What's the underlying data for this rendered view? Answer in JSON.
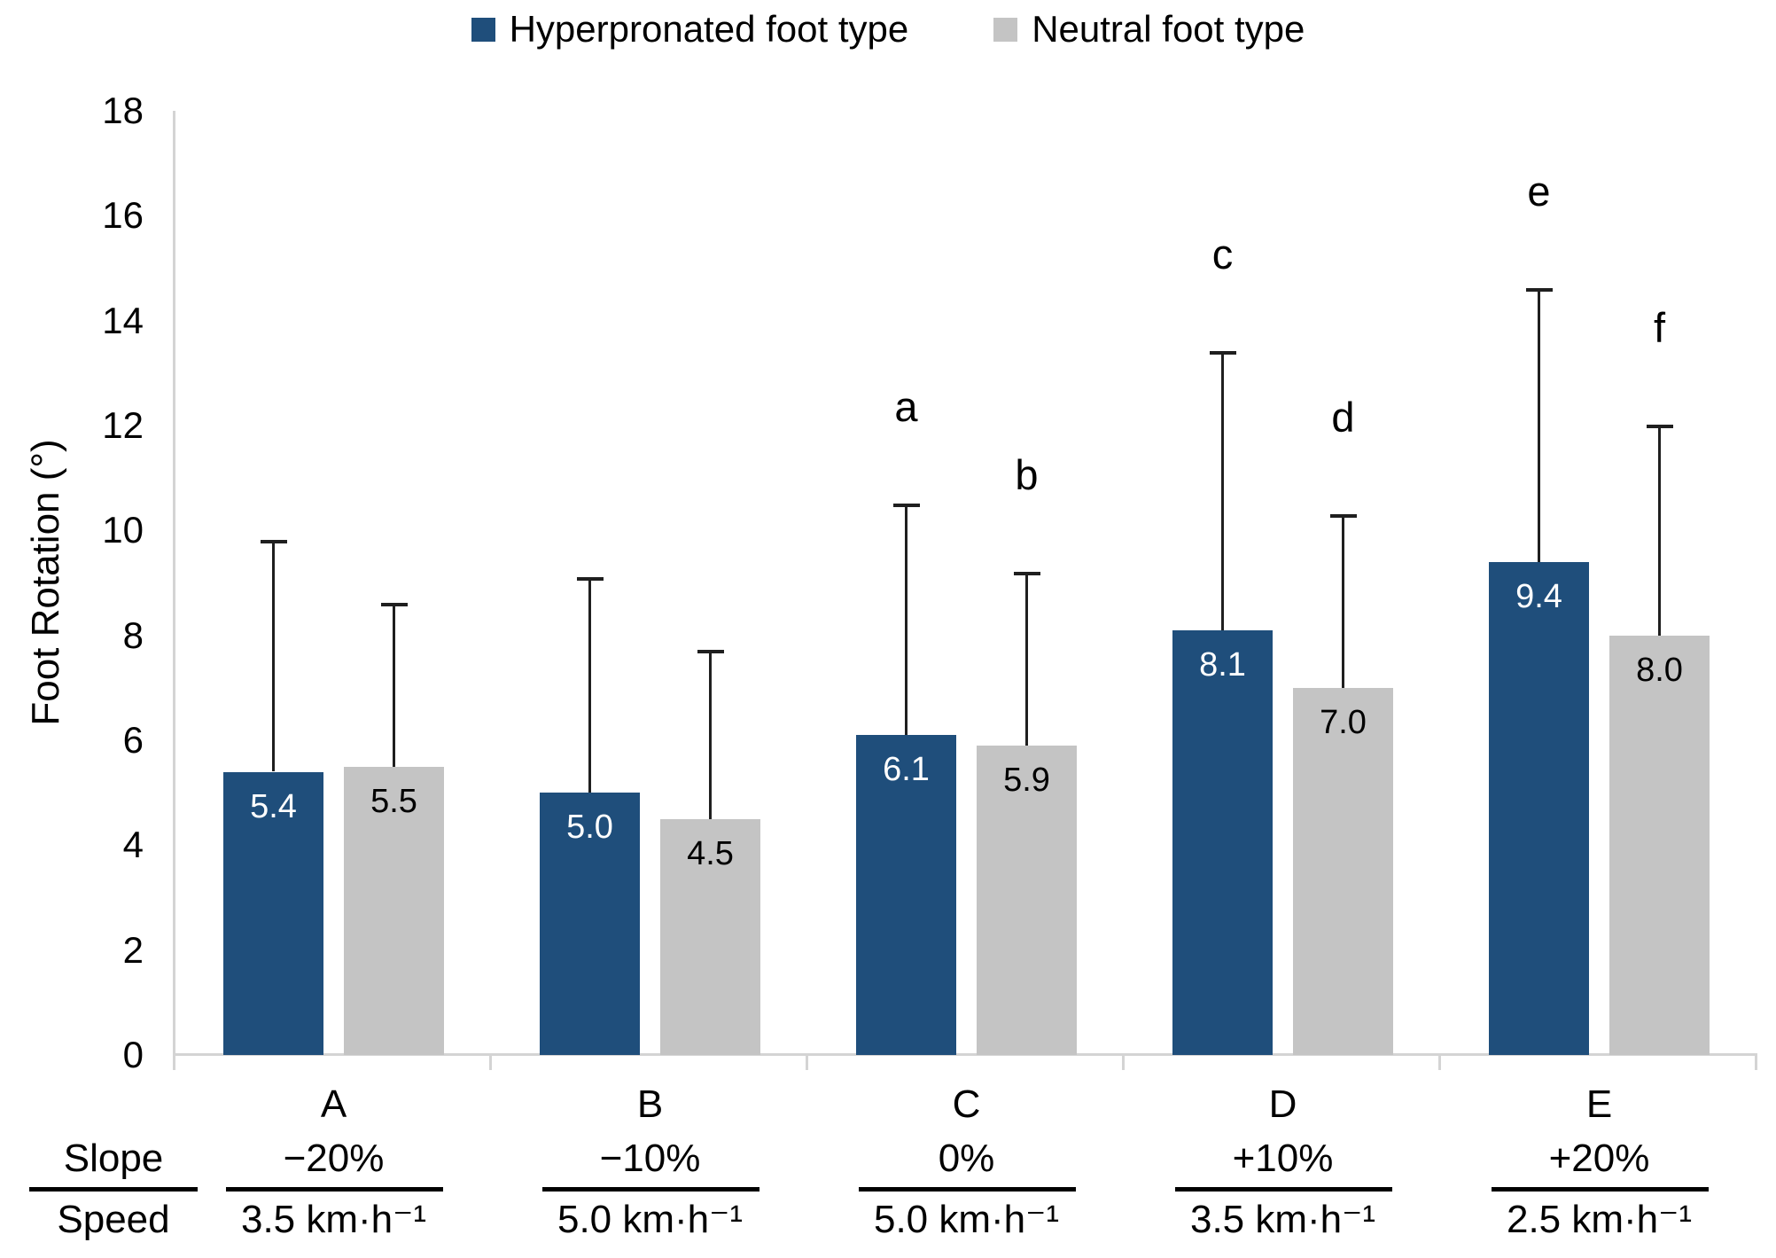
{
  "chart_data": {
    "type": "bar",
    "title": "",
    "ylabel": "Foot Rotation (°)",
    "ylim": [
      0,
      18
    ],
    "yticks": [
      18,
      16,
      14,
      12,
      10,
      8,
      6,
      4,
      2,
      0
    ],
    "grid": false,
    "legend_position": "top-center",
    "categories": [
      "A",
      "B",
      "C",
      "D",
      "E"
    ],
    "footer": {
      "row1_label": "Slope",
      "row2_label": "Speed",
      "slopes": [
        "−20%",
        "−10%",
        "0%",
        "+10%",
        "+20%"
      ],
      "speeds": [
        "3.5 km·h⁻¹",
        "5.0 km·h⁻¹",
        "5.0 km·h⁻¹",
        "3.5 km·h⁻¹",
        "2.5 km·h⁻¹"
      ]
    },
    "series": [
      {
        "name": "Hyperpronated foot type",
        "color": "#1F4E7B",
        "value_label_color": "#ffffff",
        "values": [
          5.4,
          5.0,
          6.1,
          8.1,
          9.4
        ],
        "error_bar_tops": [
          9.8,
          9.1,
          10.5,
          13.4,
          14.6
        ],
        "letters": [
          "",
          "",
          "a",
          "c",
          "e"
        ]
      },
      {
        "name": "Neutral foot type",
        "color": "#C4C4C4",
        "value_label_color": "#000000",
        "values": [
          5.5,
          4.5,
          5.9,
          7.0,
          8.0
        ],
        "error_bar_tops": [
          8.6,
          7.7,
          9.2,
          10.3,
          12.0
        ],
        "letters": [
          "",
          "",
          "b",
          "d",
          "f"
        ]
      }
    ]
  }
}
